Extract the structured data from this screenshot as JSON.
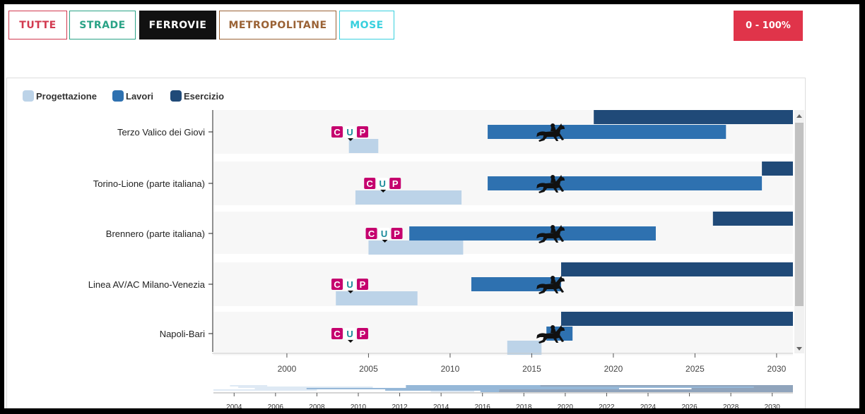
{
  "filters": [
    {
      "label": "TUTTE",
      "color": "#d2394f",
      "active": false
    },
    {
      "label": "STRADE",
      "color": "#2aa386",
      "active": false
    },
    {
      "label": "FERROVIE",
      "color": "#111111",
      "active": true
    },
    {
      "label": "METROPOLITANE",
      "color": "#9a6235",
      "active": false
    },
    {
      "label": "MOSE",
      "color": "#38d0de",
      "active": false
    }
  ],
  "range_button": "0 - 100%",
  "chart_data": {
    "type": "gantt",
    "legend": [
      {
        "name": "Progettazione",
        "color": "#bcd3e8"
      },
      {
        "name": "Lavori",
        "color": "#2e71b0"
      },
      {
        "name": "Esercizio",
        "color": "#204a78"
      }
    ],
    "xlim": [
      1995.5,
      2031
    ],
    "xticks": [
      2000,
      2005,
      2010,
      2015,
      2020,
      2025,
      2030
    ],
    "projects": [
      {
        "name": "Terzo Valico dei Giovi",
        "progettazione": [
          2003.8,
          2005.6
        ],
        "lavori": [
          2012.3,
          2026.9
        ],
        "esercizio": [
          2018.8,
          2031
        ],
        "cup": 2003.9,
        "horse": 2016.2
      },
      {
        "name": "Torino-Lione (parte italiana)",
        "progettazione": [
          2004.2,
          2010.7
        ],
        "lavori": [
          2012.3,
          2029.1
        ],
        "esercizio": [
          2029.1,
          2031
        ],
        "cup": 2005.9,
        "horse": 2016.2
      },
      {
        "name": "Brennero (parte italiana)",
        "progettazione": [
          2005.0,
          2010.8
        ],
        "lavori": [
          2007.5,
          2022.6
        ],
        "esercizio": [
          2026.1,
          2031
        ],
        "cup": 2006.0,
        "horse": 2016.2
      },
      {
        "name": "Linea AV/AC Milano-Venezia",
        "progettazione": [
          2003.0,
          2008.0
        ],
        "lavori": [
          2011.3,
          2016.8
        ],
        "esercizio": [
          2016.8,
          2031
        ],
        "cup": 2003.9,
        "horse": 2016.2
      },
      {
        "name": "Napoli-Bari",
        "progettazione": [
          2013.5,
          2015.6
        ],
        "lavori": [
          2015.9,
          2017.5
        ],
        "esercizio": [
          2016.8,
          2031
        ],
        "cup": 2003.9,
        "horse": 2016.2
      }
    ],
    "navigator": {
      "xlim": [
        2003,
        2031
      ],
      "ticks": [
        2004,
        2006,
        2008,
        2010,
        2012,
        2014,
        2016,
        2018,
        2020,
        2022,
        2024,
        2026,
        2028,
        2030
      ]
    }
  },
  "cup_badge": [
    "C",
    "U",
    "P"
  ],
  "colors": {
    "row_bg": "#f7f7f7",
    "cup_magenta": "#c5006e",
    "cup_teal": "#1a8a9a"
  }
}
